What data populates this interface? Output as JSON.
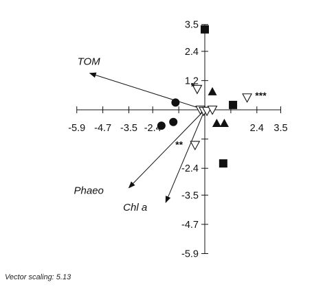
{
  "chart_data": {
    "type": "scatter",
    "subtype": "ordination biplot",
    "x_axis": {
      "min": -5.9,
      "max": 3.5,
      "ticks": [
        -5.9,
        -4.7,
        -3.5,
        -2.4,
        -1.2,
        0,
        1.2,
        2.4,
        3.5
      ],
      "tick_labels": [
        "-5.9",
        "-4.7",
        "-3.5",
        "-2.4",
        "",
        "",
        "",
        "2.4",
        "3.5"
      ]
    },
    "y_axis": {
      "min": -5.9,
      "max": 3.5,
      "ticks": [
        3.5,
        2.4,
        1.2,
        0,
        -1.2,
        -2.4,
        -3.5,
        -4.7,
        -5.9
      ],
      "tick_labels": [
        "3.5",
        "2.4",
        "1.2",
        "",
        "",
        "-2.4",
        "-3.5",
        "-4.7",
        "-5.9"
      ]
    },
    "vectors": [
      {
        "label": "TOM",
        "x": -5.3,
        "y": 1.5
      },
      {
        "label": "Phaeo",
        "x": -3.5,
        "y": -3.2
      },
      {
        "label": "Chl a",
        "x": -1.8,
        "y": -3.8
      }
    ],
    "series": [
      {
        "marker": "square",
        "points": [
          [
            0.0,
            3.3
          ],
          [
            1.3,
            0.2
          ],
          [
            0.85,
            -2.2
          ]
        ]
      },
      {
        "marker": "triangle",
        "points": [
          [
            0.35,
            0.75
          ],
          [
            0.55,
            -0.55
          ],
          [
            0.9,
            -0.55
          ]
        ]
      },
      {
        "marker": "circle",
        "points": [
          [
            -2.0,
            -0.65
          ],
          [
            -1.45,
            -0.5
          ],
          [
            -1.35,
            0.3
          ]
        ]
      },
      {
        "marker": "triangle-open",
        "points": [
          [
            -0.35,
            0.85
          ],
          [
            -0.2,
            0.0
          ],
          [
            -0.05,
            -0.05
          ],
          [
            0.1,
            -0.05
          ],
          [
            0.35,
            0.0
          ],
          [
            1.95,
            0.5
          ],
          [
            -0.45,
            -1.45
          ]
        ]
      }
    ],
    "annotations": [
      {
        "text": "*",
        "x": -0.45,
        "y": 0.95
      },
      {
        "text": "***",
        "x": 2.1,
        "y": 0.5
      },
      {
        "text": "**",
        "x": -0.85,
        "y": -1.45
      }
    ],
    "footnote": "Vector scaling: 5.13"
  }
}
